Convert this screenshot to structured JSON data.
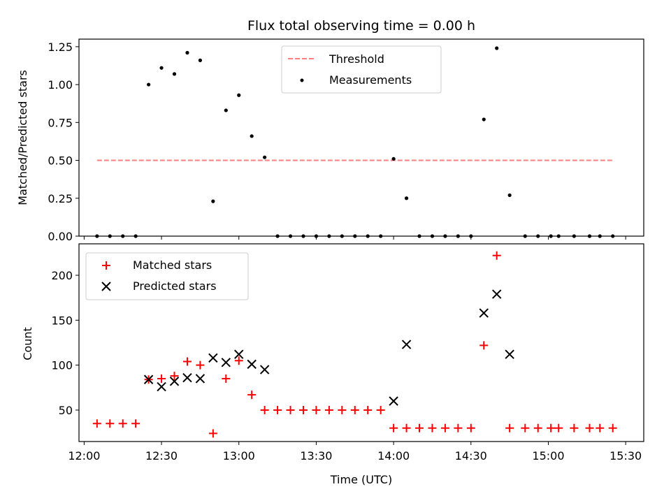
{
  "figure": {
    "title": "Flux total observing time = 0.00 h",
    "xlabel": "Time (UTC)",
    "x_ticks": [
      "12:00",
      "12:30",
      "13:00",
      "13:30",
      "14:00",
      "14:30",
      "15:00",
      "15:30"
    ]
  },
  "chart_data": [
    {
      "type": "scatter",
      "ylabel": "Matched/Predicted stars",
      "xlim": [
        "11:58",
        "15:37"
      ],
      "ylim": [
        0,
        1.3
      ],
      "y_ticks": [
        "0.00",
        "0.25",
        "0.50",
        "0.75",
        "1.00",
        "1.25"
      ],
      "y_tick_values": [
        0,
        0.25,
        0.5,
        0.75,
        1.0,
        1.25
      ],
      "legend_position": "top-center",
      "threshold": {
        "name": "Threshold",
        "color": "#ff7f7f",
        "style": "dashed",
        "x": [
          "12:05",
          "15:25"
        ],
        "y": 0.5
      },
      "series": [
        {
          "name": "Measurements",
          "marker": "dot",
          "color": "#000000",
          "x": [
            "12:05",
            "12:10",
            "12:15",
            "12:20",
            "12:25",
            "12:30",
            "12:35",
            "12:40",
            "12:45",
            "12:50",
            "12:55",
            "13:00",
            "13:05",
            "13:10",
            "13:15",
            "13:20",
            "13:25",
            "13:30",
            "13:35",
            "13:40",
            "13:45",
            "13:50",
            "13:55",
            "14:00",
            "14:05",
            "14:10",
            "14:15",
            "14:20",
            "14:25",
            "14:30",
            "14:35",
            "14:40",
            "14:45",
            "14:51",
            "14:56",
            "15:01",
            "15:04",
            "15:10",
            "15:16",
            "15:20",
            "15:25"
          ],
          "y": [
            0,
            0,
            0,
            0,
            1.0,
            1.11,
            1.07,
            1.21,
            1.16,
            0.23,
            0.83,
            0.93,
            0.66,
            0.52,
            0,
            0,
            0,
            0,
            0,
            0,
            0,
            0,
            0,
            0.51,
            0.25,
            0,
            0,
            0,
            0,
            0,
            0.77,
            1.24,
            0.27,
            0,
            0,
            0,
            0,
            0,
            0,
            0,
            0
          ]
        }
      ]
    },
    {
      "type": "scatter",
      "ylabel": "Count",
      "xlim": [
        "11:58",
        "15:37"
      ],
      "ylim": [
        15,
        235
      ],
      "y_ticks": [
        "50",
        "100",
        "150",
        "200"
      ],
      "y_tick_values": [
        50,
        100,
        150,
        200
      ],
      "legend_position": "top-left",
      "series": [
        {
          "name": "Matched stars",
          "marker": "plus",
          "color": "#ff0000",
          "x": [
            "12:05",
            "12:10",
            "12:15",
            "12:20",
            "12:25",
            "12:30",
            "12:35",
            "12:40",
            "12:45",
            "12:50",
            "12:55",
            "13:00",
            "13:05",
            "13:10",
            "13:15",
            "13:20",
            "13:25",
            "13:30",
            "13:35",
            "13:40",
            "13:45",
            "13:50",
            "13:55",
            "14:00",
            "14:05",
            "14:10",
            "14:15",
            "14:20",
            "14:25",
            "14:30",
            "14:35",
            "14:40",
            "14:45",
            "14:51",
            "14:56",
            "15:01",
            "15:04",
            "15:10",
            "15:16",
            "15:20",
            "15:25"
          ],
          "y": [
            35,
            35,
            35,
            35,
            84,
            85,
            88,
            104,
            100,
            24,
            85,
            105,
            67,
            50,
            50,
            50,
            50,
            50,
            50,
            50,
            50,
            50,
            50,
            30,
            30,
            30,
            30,
            30,
            30,
            30,
            122,
            222,
            30,
            30,
            30,
            30,
            30,
            30,
            30,
            30,
            30
          ]
        },
        {
          "name": "Predicted stars",
          "marker": "x",
          "color": "#000000",
          "x": [
            "12:25",
            "12:30",
            "12:35",
            "12:40",
            "12:45",
            "12:50",
            "12:55",
            "13:00",
            "13:05",
            "13:10",
            "14:00",
            "14:05",
            "14:35",
            "14:40",
            "14:45"
          ],
          "y": [
            84,
            76,
            82,
            86,
            85,
            108,
            103,
            112,
            101,
            95,
            60,
            123,
            158,
            179,
            112
          ]
        }
      ]
    }
  ]
}
